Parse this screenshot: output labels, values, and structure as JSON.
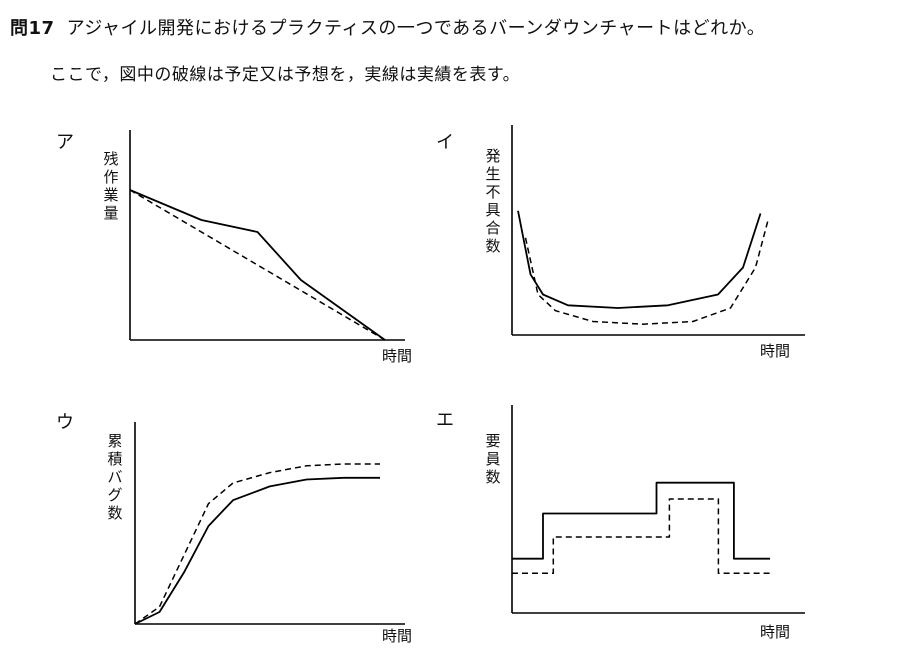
{
  "question": {
    "number": "問17",
    "text": "アジャイル開発におけるプラクティスの一つであるバーンダウンチャートはどれか。",
    "note": "ここで，図中の破線は予定又は予想を，実線は実績を表す。"
  },
  "options": [
    {
      "letter": "ア",
      "ylabel": "残作業量",
      "xlabel": "時間"
    },
    {
      "letter": "イ",
      "ylabel": "発生不具合数",
      "xlabel": "時間"
    },
    {
      "letter": "ウ",
      "ylabel": "累積バグ数",
      "xlabel": "時間"
    },
    {
      "letter": "エ",
      "ylabel": "要員数",
      "xlabel": "時間"
    }
  ],
  "chart_data": [
    {
      "type": "line",
      "title": "",
      "xlabel": "時間",
      "ylabel": "残作業量",
      "series": [
        {
          "style": "dashed",
          "x": [
            0,
            1
          ],
          "y": [
            1.0,
            0.0
          ]
        },
        {
          "style": "solid",
          "x": [
            0,
            0.28,
            0.5,
            0.67,
            1
          ],
          "y": [
            1.0,
            0.8,
            0.72,
            0.4,
            0.0
          ]
        }
      ]
    },
    {
      "type": "line",
      "title": "",
      "xlabel": "時間",
      "ylabel": "発生不具合数",
      "series": [
        {
          "style": "solid",
          "x": [
            0,
            0.05,
            0.1,
            0.2,
            0.4,
            0.6,
            0.8,
            0.9,
            0.97
          ],
          "y": [
            0.92,
            0.45,
            0.3,
            0.22,
            0.2,
            0.22,
            0.3,
            0.5,
            0.9
          ]
        },
        {
          "style": "dashed",
          "x": [
            0.03,
            0.08,
            0.15,
            0.3,
            0.5,
            0.7,
            0.85,
            0.95,
            1.0
          ],
          "y": [
            0.72,
            0.3,
            0.18,
            0.1,
            0.08,
            0.1,
            0.2,
            0.5,
            0.85
          ]
        }
      ]
    },
    {
      "type": "line",
      "title": "",
      "xlabel": "時間",
      "ylabel": "累積バグ数",
      "series": [
        {
          "style": "dashed",
          "x": [
            0,
            0.1,
            0.2,
            0.3,
            0.4,
            0.55,
            0.7,
            0.85,
            1.0
          ],
          "y": [
            0,
            0.1,
            0.4,
            0.7,
            0.82,
            0.88,
            0.92,
            0.93,
            0.93
          ]
        },
        {
          "style": "solid",
          "x": [
            0,
            0.1,
            0.2,
            0.3,
            0.4,
            0.55,
            0.7,
            0.85,
            1.0
          ],
          "y": [
            0,
            0.07,
            0.3,
            0.57,
            0.72,
            0.8,
            0.84,
            0.85,
            0.85
          ]
        }
      ]
    },
    {
      "type": "line",
      "title": "",
      "xlabel": "時間",
      "ylabel": "要員数",
      "series": [
        {
          "style": "solid",
          "step": true,
          "x": [
            0,
            0.12,
            0.45,
            0.56,
            0.86,
            1.0
          ],
          "y": [
            0.3,
            0.55,
            0.55,
            0.72,
            0.3,
            0.3
          ]
        },
        {
          "style": "dashed",
          "step": true,
          "x": [
            0,
            0.16,
            0.5,
            0.61,
            0.8,
            1.0
          ],
          "y": [
            0.22,
            0.42,
            0.42,
            0.63,
            0.22,
            0.22
          ]
        }
      ]
    }
  ]
}
